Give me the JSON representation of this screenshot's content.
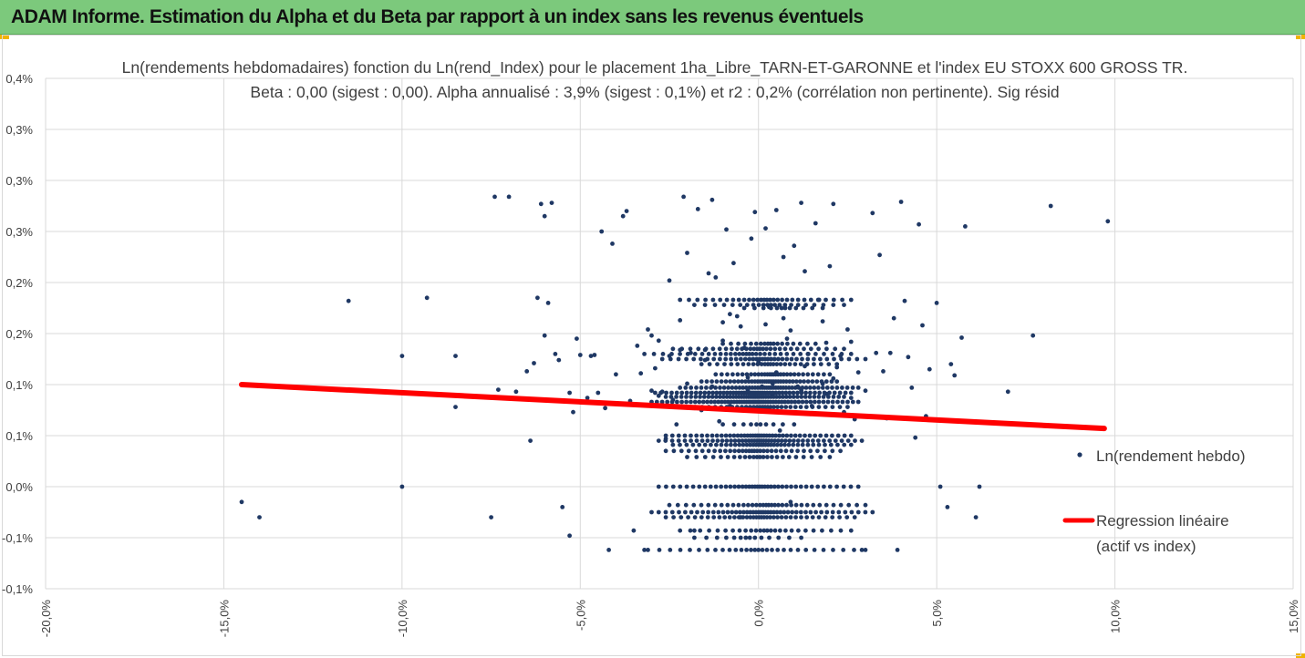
{
  "banner": {
    "title": "ADAM Informe. Estimation du Alpha et du Beta par rapport à un index sans les revenus éventuels"
  },
  "colors": {
    "banner": "#7cc97c",
    "points": "#1f3864",
    "regression": "#ff0000",
    "grid": "#d9d9d9",
    "accent": "#f0b400"
  },
  "chart_data": {
    "type": "scatter",
    "title_line1": "Ln(rendements hebdomadaires) fonction du Ln(rend_Index) pour le placement 1ha_Libre_TARN-ET-GARONNE et l'index EU STOXX 600 GROSS TR.",
    "title_line2": "Beta : 0,00 (sigest : 0,00). Alpha annualisé : 3,9% (sigest : 0,1%) et r2 : 0,2% (corrélation non pertinente). Sig résid",
    "xlim": [
      -20,
      15
    ],
    "ylim": [
      -0.1,
      0.4
    ],
    "x_tick_values": [
      -20,
      -15,
      -10,
      -5,
      0,
      5,
      10,
      15
    ],
    "x_tick_labels": [
      "-20,0%",
      "-15,0%",
      "-10,0%",
      "-5,0%",
      "0,0%",
      "5,0%",
      "10,0%",
      "15,0%"
    ],
    "y_tick_values": [
      -0.1,
      -0.05,
      0.0,
      0.05,
      0.1,
      0.15,
      0.2,
      0.25,
      0.3,
      0.35,
      0.4
    ],
    "y_tick_labels": [
      "-0,1%",
      "-0,1%",
      "0,0%",
      "0,1%",
      "0,1%",
      "0,2%",
      "0,2%",
      "0,3%",
      "0,3%",
      "0,3%",
      "0,4%"
    ],
    "grid": true,
    "legend_position": "right",
    "series": [
      {
        "name": "Ln(rendement hebdo)",
        "kind": "scatter",
        "color": "#1f3864",
        "points": [
          [
            -14.5,
            -0.015
          ],
          [
            -14.0,
            -0.03
          ],
          [
            -11.5,
            0.182
          ],
          [
            -10.0,
            0.128
          ],
          [
            -10.0,
            0.0
          ],
          [
            -9.3,
            0.185
          ],
          [
            -8.5,
            0.128
          ],
          [
            -8.5,
            0.078
          ],
          [
            -7.5,
            -0.03
          ],
          [
            -7.4,
            0.284
          ],
          [
            -7.3,
            0.095
          ],
          [
            -7.0,
            0.284
          ],
          [
            -6.8,
            0.093
          ],
          [
            -6.5,
            0.113
          ],
          [
            -6.4,
            0.045
          ],
          [
            -6.3,
            0.121
          ],
          [
            -6.2,
            0.185
          ],
          [
            -6.1,
            0.277
          ],
          [
            -6.0,
            0.265
          ],
          [
            -6.0,
            0.148
          ],
          [
            -5.9,
            0.18
          ],
          [
            -5.8,
            0.278
          ],
          [
            -5.7,
            0.13
          ],
          [
            -5.6,
            0.124
          ],
          [
            -5.5,
            -0.02
          ],
          [
            -5.3,
            0.092
          ],
          [
            -5.3,
            -0.048
          ],
          [
            -5.2,
            0.073
          ],
          [
            -5.1,
            0.145
          ],
          [
            -5.0,
            0.129
          ],
          [
            -4.8,
            0.087
          ],
          [
            -4.7,
            0.128
          ],
          [
            -4.6,
            0.129
          ],
          [
            -4.5,
            0.092
          ],
          [
            -4.4,
            0.25
          ],
          [
            -4.3,
            0.077
          ],
          [
            -4.2,
            -0.062
          ],
          [
            -4.1,
            0.238
          ],
          [
            -4.0,
            0.11
          ],
          [
            -3.8,
            0.265
          ],
          [
            -3.7,
            0.27
          ],
          [
            -3.6,
            0.084
          ],
          [
            -3.5,
            -0.043
          ],
          [
            -3.4,
            0.138
          ],
          [
            -3.3,
            0.111
          ],
          [
            -3.2,
            -0.062
          ],
          [
            -3.1,
            0.154
          ],
          [
            -3.0,
            0.094
          ],
          [
            -2.9,
            0.116
          ],
          [
            -2.8,
            0.089
          ],
          [
            -2.7,
            0.093
          ],
          [
            -2.6,
            0.047
          ],
          [
            -2.5,
            0.202
          ],
          [
            -2.4,
            0.085
          ],
          [
            -2.3,
            0.061
          ],
          [
            -2.2,
            0.163
          ],
          [
            -2.1,
            0.284
          ],
          [
            -2.0,
            0.229
          ],
          [
            -1.9,
            0.131
          ],
          [
            -1.8,
            -0.043
          ],
          [
            -1.7,
            0.272
          ],
          [
            -1.6,
            0.075
          ],
          [
            -1.5,
            0.134
          ],
          [
            -1.4,
            0.209
          ],
          [
            -1.3,
            0.281
          ],
          [
            -1.2,
            0.205
          ],
          [
            -1.1,
            0.064
          ],
          [
            -1.0,
            0.161
          ],
          [
            -0.9,
            0.252
          ],
          [
            -0.8,
            0.079
          ],
          [
            -0.7,
            0.219
          ],
          [
            -0.6,
            0.167
          ],
          [
            -0.5,
            -0.03
          ],
          [
            -0.4,
            0.136
          ],
          [
            -0.3,
            0.107
          ],
          [
            -0.2,
            0.243
          ],
          [
            -0.1,
            0.269
          ],
          [
            0.0,
            0.122
          ],
          [
            0.1,
            0.098
          ],
          [
            0.2,
            0.253
          ],
          [
            0.3,
            0.176
          ],
          [
            0.4,
            0.09
          ],
          [
            0.5,
            0.271
          ],
          [
            0.6,
            0.055
          ],
          [
            0.7,
            0.225
          ],
          [
            0.8,
            0.145
          ],
          [
            0.9,
            -0.015
          ],
          [
            1.0,
            0.236
          ],
          [
            1.1,
            0.098
          ],
          [
            1.2,
            0.278
          ],
          [
            1.3,
            0.211
          ],
          [
            1.4,
            0.13
          ],
          [
            1.5,
            0.079
          ],
          [
            1.6,
            0.258
          ],
          [
            1.7,
            0.183
          ],
          [
            1.8,
            0.101
          ],
          [
            1.9,
            0.141
          ],
          [
            2.0,
            0.216
          ],
          [
            2.1,
            0.277
          ],
          [
            2.2,
            0.117
          ],
          [
            2.3,
            0.128
          ],
          [
            2.4,
            0.073
          ],
          [
            2.5,
            0.154
          ],
          [
            2.6,
            0.087
          ],
          [
            2.7,
            0.066
          ],
          [
            2.8,
            0.112
          ],
          [
            2.9,
            -0.062
          ],
          [
            3.0,
            0.094
          ],
          [
            3.2,
            0.268
          ],
          [
            3.3,
            0.131
          ],
          [
            3.4,
            0.227
          ],
          [
            3.5,
            0.113
          ],
          [
            3.6,
            0.067
          ],
          [
            3.7,
            0.131
          ],
          [
            3.8,
            0.165
          ],
          [
            3.9,
            -0.062
          ],
          [
            4.0,
            0.279
          ],
          [
            4.1,
            0.182
          ],
          [
            4.2,
            0.127
          ],
          [
            4.3,
            0.097
          ],
          [
            4.4,
            0.048
          ],
          [
            4.5,
            0.257
          ],
          [
            4.6,
            0.158
          ],
          [
            4.7,
            0.069
          ],
          [
            4.8,
            0.115
          ],
          [
            5.0,
            0.18
          ],
          [
            5.1,
            0.0
          ],
          [
            5.3,
            -0.02
          ],
          [
            5.4,
            0.12
          ],
          [
            5.5,
            0.109
          ],
          [
            5.7,
            0.146
          ],
          [
            5.8,
            0.255
          ],
          [
            6.1,
            -0.03
          ],
          [
            6.2,
            0.0
          ],
          [
            7.0,
            0.093
          ],
          [
            7.7,
            0.148
          ],
          [
            8.2,
            0.275
          ],
          [
            9.8,
            0.26
          ],
          [
            -3.0,
            0.148
          ],
          [
            -2.8,
            0.143
          ],
          [
            -2.5,
            0.128
          ],
          [
            -2.2,
            0.134
          ],
          [
            -1.5,
            0.124
          ],
          [
            -1.0,
            0.143
          ],
          [
            -0.5,
            0.157
          ],
          [
            0.2,
            0.159
          ],
          [
            0.5,
            0.112
          ],
          [
            0.9,
            0.153
          ],
          [
            1.3,
            0.118
          ],
          [
            1.8,
            0.162
          ],
          [
            2.1,
            0.106
          ],
          [
            2.6,
            0.142
          ],
          [
            -0.3,
            0.094
          ],
          [
            0.4,
            0.101
          ],
          [
            1.2,
            0.094
          ],
          [
            1.9,
            0.091
          ],
          [
            -1.3,
            0.098
          ],
          [
            -2.0,
            0.101
          ],
          [
            0.7,
            0.165
          ],
          [
            -0.8,
            0.169
          ]
        ],
        "bands": [
          {
            "y": 0.0,
            "x_from": -2.8,
            "x_to": 2.8,
            "count": 42
          },
          {
            "y": -0.018,
            "x_from": -2.5,
            "x_to": 3.0,
            "count": 36
          },
          {
            "y": -0.025,
            "x_from": -3.0,
            "x_to": 3.2,
            "count": 48
          },
          {
            "y": -0.03,
            "x_from": -2.6,
            "x_to": 2.7,
            "count": 38
          },
          {
            "y": -0.043,
            "x_from": -2.2,
            "x_to": 2.6,
            "count": 26
          },
          {
            "y": -0.05,
            "x_from": -1.8,
            "x_to": 1.2,
            "count": 14
          },
          {
            "y": -0.062,
            "x_from": -3.1,
            "x_to": 3.0,
            "count": 30
          },
          {
            "y": 0.05,
            "x_from": -2.6,
            "x_to": 2.6,
            "count": 44
          },
          {
            "y": 0.045,
            "x_from": -2.8,
            "x_to": 2.9,
            "count": 46
          },
          {
            "y": 0.041,
            "x_from": -2.4,
            "x_to": 2.6,
            "count": 40
          },
          {
            "y": 0.035,
            "x_from": -2.6,
            "x_to": 2.3,
            "count": 34
          },
          {
            "y": 0.029,
            "x_from": -2.0,
            "x_to": 2.0,
            "count": 24
          },
          {
            "y": 0.061,
            "x_from": -1.0,
            "x_to": 1.0,
            "count": 10
          },
          {
            "y": 0.083,
            "x_from": -3.0,
            "x_to": 2.8,
            "count": 60
          },
          {
            "y": 0.088,
            "x_from": -2.6,
            "x_to": 2.4,
            "count": 52
          },
          {
            "y": 0.092,
            "x_from": -2.9,
            "x_to": 2.6,
            "count": 54
          },
          {
            "y": 0.097,
            "x_from": -2.2,
            "x_to": 2.8,
            "count": 50
          },
          {
            "y": 0.103,
            "x_from": -1.6,
            "x_to": 2.2,
            "count": 40
          },
          {
            "y": 0.11,
            "x_from": -1.2,
            "x_to": 2.0,
            "count": 30
          },
          {
            "y": 0.078,
            "x_from": -2.2,
            "x_to": 2.5,
            "count": 34
          },
          {
            "y": 0.125,
            "x_from": -2.7,
            "x_to": 3.0,
            "count": 38
          },
          {
            "y": 0.13,
            "x_from": -3.2,
            "x_to": 2.6,
            "count": 34
          },
          {
            "y": 0.135,
            "x_from": -2.4,
            "x_to": 2.4,
            "count": 30
          },
          {
            "y": 0.12,
            "x_from": -1.6,
            "x_to": 2.2,
            "count": 26
          },
          {
            "y": 0.14,
            "x_from": -1.0,
            "x_to": 1.6,
            "count": 18
          },
          {
            "y": 0.183,
            "x_from": -2.2,
            "x_to": 2.6,
            "count": 30
          },
          {
            "y": 0.178,
            "x_from": -1.8,
            "x_to": 2.4,
            "count": 22
          },
          {
            "y": 0.175,
            "x_from": -0.4,
            "x_to": 1.8,
            "count": 12
          }
        ]
      },
      {
        "name": "Regression linéaire (actif vs index)",
        "legend_line1": "Regression linéaire",
        "legend_line2": "(actif vs index)",
        "kind": "line",
        "color": "#ff0000",
        "x": [
          -14.5,
          9.7
        ],
        "y": [
          0.1,
          0.057
        ]
      }
    ]
  }
}
